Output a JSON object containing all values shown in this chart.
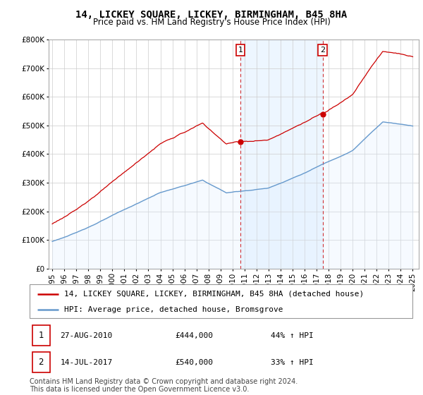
{
  "title": "14, LICKEY SQUARE, LICKEY, BIRMINGHAM, B45 8HA",
  "subtitle": "Price paid vs. HM Land Registry's House Price Index (HPI)",
  "ylim": [
    0,
    800000
  ],
  "yticks": [
    0,
    100000,
    200000,
    300000,
    400000,
    500000,
    600000,
    700000,
    800000
  ],
  "ytick_labels": [
    "£0",
    "£100K",
    "£200K",
    "£300K",
    "£400K",
    "£500K",
    "£600K",
    "£700K",
    "£800K"
  ],
  "background_color": "#ffffff",
  "grid_color": "#cccccc",
  "sale1_x": 2010.65,
  "sale1_price": 444000,
  "sale2_x": 2017.54,
  "sale2_price": 540000,
  "sale_color": "#cc0000",
  "hpi_color": "#6699cc",
  "hpi_fill_color": "#ddeeff",
  "shade_color": "#ddeeff",
  "legend_label_sale": "14, LICKEY SQUARE, LICKEY, BIRMINGHAM, B45 8HA (detached house)",
  "legend_label_hpi": "HPI: Average price, detached house, Bromsgrove",
  "annotation1_date": "27-AUG-2010",
  "annotation1_price": "£444,000",
  "annotation1_pct": "44% ↑ HPI",
  "annotation2_date": "14-JUL-2017",
  "annotation2_price": "£540,000",
  "annotation2_pct": "33% ↑ HPI",
  "footer": "Contains HM Land Registry data © Crown copyright and database right 2024.\nThis data is licensed under the Open Government Licence v3.0.",
  "title_fontsize": 10,
  "subtitle_fontsize": 8.5,
  "tick_fontsize": 7.5,
  "legend_fontsize": 8,
  "footer_fontsize": 7
}
